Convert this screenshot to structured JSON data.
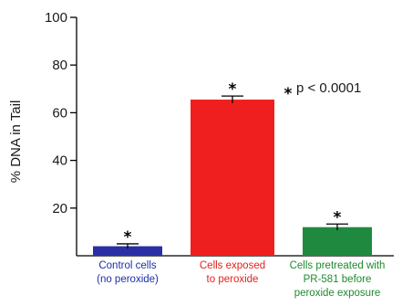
{
  "chart_data": {
    "type": "bar",
    "ylabel": "% DNA in Tail",
    "ylim": [
      0,
      100
    ],
    "yticks": [
      20,
      40,
      60,
      80,
      100
    ],
    "grid": false,
    "categories": [
      [
        "Control cells",
        "(no peroxide)"
      ],
      [
        "Cells exposed",
        "to peroxide"
      ],
      [
        "Cells pretreated with",
        "PR-581 before",
        "peroxide exposure"
      ]
    ],
    "values": [
      4,
      65.5,
      12
    ],
    "errors": [
      1,
      1.5,
      1.3
    ],
    "bar_colors": [
      "#2b2fa6",
      "#f01f1f",
      "#1f8a3f"
    ],
    "label_colors": [
      "#1f2ea6",
      "#e3211b",
      "#1f8a2f"
    ],
    "significance_marker": "*",
    "legend": {
      "symbol": "*",
      "text": "p < 0.0001",
      "placement": "top-right"
    }
  }
}
